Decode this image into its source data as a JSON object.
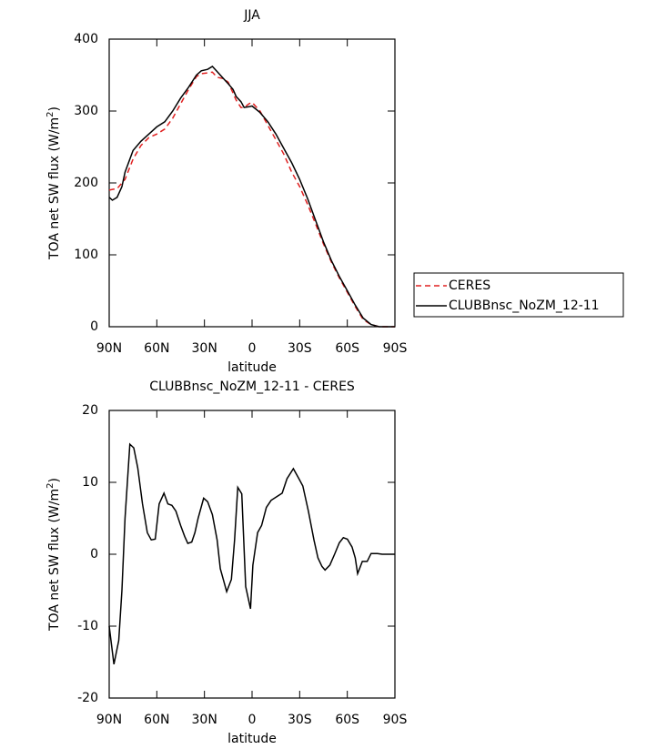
{
  "chart_data": [
    {
      "type": "line",
      "title": "JJA",
      "xlabel": "latitude",
      "ylabel": [
        "TOA net SW flux (W/m",
        "2",
        ")"
      ],
      "x": [
        90,
        88,
        85,
        82,
        80,
        75,
        70,
        65,
        60,
        55,
        50,
        45,
        40,
        35,
        32,
        28,
        25,
        22,
        18,
        15,
        12,
        10,
        7,
        5,
        2,
        0,
        -5,
        -10,
        -15,
        -20,
        -25,
        -30,
        -35,
        -40,
        -45,
        -50,
        -55,
        -60,
        -65,
        -70,
        -75,
        -80,
        -85,
        -90
      ],
      "series": [
        {
          "name": "CERES",
          "color": "#e02020",
          "linestyle": "dashed",
          "values": [
            190,
            191,
            192,
            200,
            205,
            233,
            252,
            263,
            268,
            275,
            290,
            310,
            330,
            348,
            352,
            353,
            354,
            347,
            345,
            340,
            325,
            315,
            305,
            305,
            310,
            312,
            300,
            280,
            260,
            240,
            215,
            195,
            170,
            143,
            115,
            90,
            68,
            48,
            28,
            10,
            3,
            0,
            0,
            0
          ]
        },
        {
          "name": "CLUBBnsc_NoZM_12-11",
          "color": "#000000",
          "linestyle": "solid",
          "values": [
            180,
            176,
            180,
            195,
            215,
            245,
            258,
            268,
            278,
            285,
            300,
            318,
            333,
            350,
            356,
            358,
            362,
            355,
            345,
            338,
            330,
            320,
            313,
            305,
            306,
            307,
            298,
            285,
            268,
            248,
            228,
            205,
            178,
            148,
            118,
            92,
            70,
            50,
            30,
            12,
            3,
            0,
            0,
            0
          ]
        }
      ],
      "xlim": [
        90,
        -90
      ],
      "xticks": [
        {
          "value": 90,
          "label": "90N"
        },
        {
          "value": 60,
          "label": "60N"
        },
        {
          "value": 30,
          "label": "30N"
        },
        0,
        {
          "value": -30,
          "label": "30S"
        },
        {
          "value": -60,
          "label": "60S"
        },
        {
          "value": -90,
          "label": "90S"
        }
      ],
      "ylim": [
        0,
        400
      ],
      "yticks": [
        0,
        100,
        200,
        300,
        400
      ],
      "legend": "right"
    },
    {
      "type": "line",
      "title": "CLUBBnsc_NoZM_12-11 - CERES",
      "xlabel": "latitude",
      "ylabel": [
        "TOA net SW flux (W/m",
        "2",
        ")"
      ],
      "x": [
        90,
        87,
        84,
        82,
        80,
        77,
        74.5,
        72,
        69,
        66,
        63.5,
        61,
        58.5,
        55.5,
        53,
        50.5,
        48,
        45,
        42.5,
        40.5,
        38,
        36,
        34,
        30.5,
        28,
        25,
        22,
        20,
        16,
        13,
        11,
        9,
        6.5,
        4,
        1,
        -0.5,
        -3.5,
        -6,
        -9,
        -12,
        -19,
        -22,
        -26,
        -29.5,
        -32,
        -35.5,
        -39,
        -41.5,
        -44,
        -46,
        -49,
        -52,
        -55,
        -57.5,
        -60,
        -63,
        -65,
        -66.5,
        -69.5,
        -72.5,
        -75,
        -79,
        -82,
        -90
      ],
      "color": "#000000",
      "values": [
        -10,
        -15.3,
        -12,
        -5,
        5,
        15.3,
        14.8,
        12,
        7,
        3,
        2,
        2.1,
        7,
        8.5,
        7,
        6.8,
        6,
        4,
        2.5,
        1.5,
        1.7,
        3,
        5,
        7.8,
        7.3,
        5.5,
        2,
        -2,
        -5.2,
        -3.5,
        2,
        9.3,
        8.4,
        -4.5,
        -7.6,
        -1.5,
        3,
        4,
        6.5,
        7.5,
        8.5,
        10.5,
        11.9,
        10.5,
        9.5,
        6,
        2,
        -0.5,
        -1.7,
        -2.2,
        -1.5,
        0,
        1.6,
        2.3,
        2.1,
        1,
        -0.5,
        -2.7,
        -1,
        -1,
        0.1,
        0.1,
        0,
        0
      ],
      "xlim": [
        90,
        -90
      ],
      "xticks": [
        {
          "value": 90,
          "label": "90N"
        },
        {
          "value": 60,
          "label": "60N"
        },
        {
          "value": 30,
          "label": "30N"
        },
        0,
        {
          "value": -30,
          "label": "30S"
        },
        {
          "value": -60,
          "label": "60S"
        },
        {
          "value": -90,
          "label": "90S"
        }
      ],
      "ylim": [
        -20,
        20
      ],
      "yticks": [
        -20,
        -10,
        0,
        10,
        20
      ]
    }
  ]
}
